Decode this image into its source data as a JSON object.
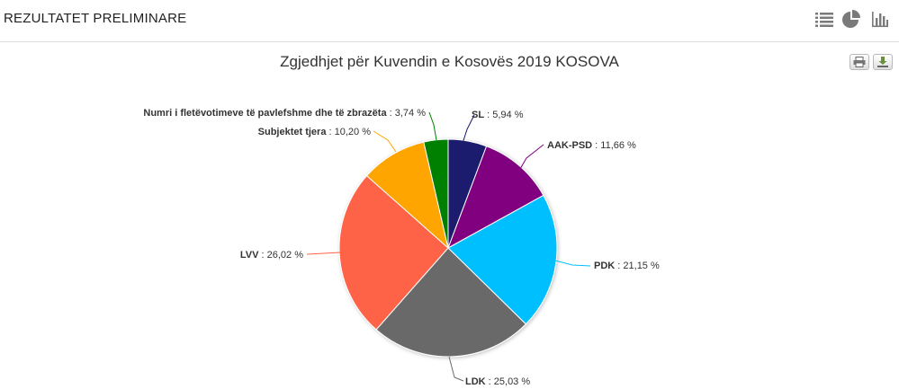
{
  "header": {
    "title": "REZULTATET PRELIMINARE",
    "view_icons": [
      "list-view-icon",
      "pie-view-icon",
      "bar-view-icon"
    ]
  },
  "toolbar": {
    "buttons": [
      "print-icon",
      "download-icon"
    ]
  },
  "chart_data": {
    "type": "pie",
    "title": "Zgjedhjet për Kuvendin e Kosovës 2019 KOSOVA",
    "value_suffix": " %",
    "slices": [
      {
        "name": "SL",
        "value": 5.94,
        "display": "5,94",
        "color": "#1b1a6e"
      },
      {
        "name": "AAK-PSD",
        "value": 11.66,
        "display": "11,66",
        "color": "#800080"
      },
      {
        "name": "PDK",
        "value": 21.15,
        "display": "21,15",
        "color": "#00bfff"
      },
      {
        "name": "LDK",
        "value": 25.03,
        "display": "25,03",
        "color": "#696969"
      },
      {
        "name": "LVV",
        "value": 26.02,
        "display": "26,02",
        "color": "#ff6347"
      },
      {
        "name": "Subjektet tjera",
        "value": 10.2,
        "display": "10,20",
        "color": "#ffa500"
      },
      {
        "name": "Numri i fletëvotimeve të pavlefshme dhe të zbrazëta",
        "value": 3.74,
        "display": "3,74",
        "color": "#008000"
      }
    ]
  }
}
